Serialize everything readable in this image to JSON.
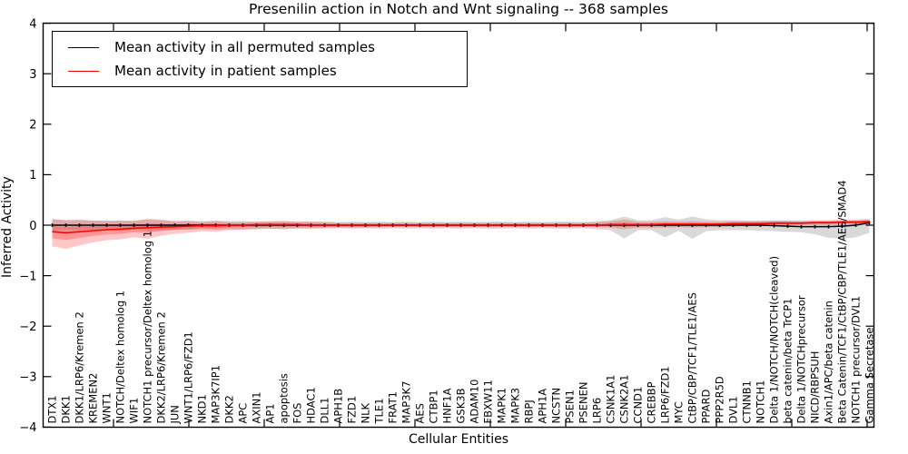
{
  "figure": {
    "title": "Presenilin action in Notch and Wnt signaling -- 368 samples"
  },
  "axes": {
    "xlabel": "Cellular Entities",
    "ylabel": "Inferred Activity",
    "ytick_values": [
      4,
      3,
      2,
      1,
      0,
      -1,
      -2,
      -3,
      -4
    ],
    "ytick_labels": [
      "4",
      "3",
      "2",
      "1",
      "0",
      "−1",
      "−2",
      "−3",
      "−4"
    ]
  },
  "legend": {
    "items": [
      {
        "label": "Mean activity in all permuted samples",
        "color": "#000000"
      },
      {
        "label": "Mean activity in patient samples",
        "color": "#ff0000"
      }
    ]
  },
  "colors": {
    "permuted_line": "#000000",
    "patient_line": "#ff0000",
    "permuted_band": "#8a8a8a",
    "patient_band": "#ff0000",
    "frame": "#000000"
  },
  "chart_data": {
    "type": "line",
    "title": "Presenilin action in Notch and Wnt signaling -- 368 samples",
    "xlabel": "Cellular Entities",
    "ylabel": "Inferred Activity",
    "ylim": [
      -4,
      4
    ],
    "yticks": [
      4,
      3,
      2,
      1,
      0,
      -1,
      -2,
      -3,
      -4
    ],
    "grid": false,
    "legend_position": "upper left",
    "categories": [
      "DTX1",
      "DKK1",
      "DKK1/LRP6/Kremen 2",
      "KREMEN2",
      "WNT1",
      "NOTCH/Deltex homolog 1",
      "WIF1",
      "NOTCH1 precursor/Deltex homolog 1",
      "DKK2/LRP6/Kremen 2",
      "JUN",
      "WNT1/LRP6/FZD1",
      "NKD1",
      "MAP3K7IP1",
      "DKK2",
      "APC",
      "AXIN1",
      "AP1",
      "apoptosis",
      "FOS",
      "HDAC1",
      "DLL1",
      "APH1B",
      "FZD1",
      "NLK",
      "TLE1",
      "FRAT1",
      "MAP3K7",
      "AES",
      "CTBP1",
      "HNF1A",
      "GSK3B",
      "ADAM10",
      "FBXW11",
      "MAPK1",
      "MAPK3",
      "RBPJ",
      "APH1A",
      "NCSTN",
      "PSEN1",
      "PSENEN",
      "LRP6",
      "CSNK1A1",
      "CSNK2A1",
      "CCND1",
      "CREBBP",
      "LRP6/FZD1",
      "MYC",
      "CtBP/CBP/TCF1/TLE1/AES",
      "PPARD",
      "PPP2R5D",
      "DVL1",
      "CTNNB1",
      "NOTCH1",
      "Delta 1/NOTCH/NOTCH(cleaved)",
      "beta catenin/beta TrCP1",
      "Delta 1/NOTCHprecursor",
      "NICD/RBPSUH",
      "Axin1/APC/beta catenin",
      "Beta Catenin/TCF1/CtBP/CBP/TLE1/AES/SMAD4",
      "NOTCH1 precursor/DVL1",
      "Gamma Secretase"
    ],
    "series": [
      {
        "name": "Mean activity in all permuted samples",
        "color": "#000000",
        "values": [
          0,
          0,
          0,
          0,
          0,
          0,
          0,
          0,
          0,
          0,
          0,
          0,
          0,
          0,
          0,
          0,
          0,
          0,
          0,
          0,
          0,
          0,
          0,
          0,
          0,
          0,
          0,
          0,
          0,
          0,
          0,
          0,
          0,
          0,
          0,
          0,
          0,
          0,
          0,
          0,
          0,
          0,
          0,
          0,
          0,
          0,
          0,
          0,
          0,
          0,
          0,
          0,
          0,
          -0.01,
          -0.02,
          -0.03,
          -0.03,
          -0.03,
          -0.02,
          0,
          0.05
        ],
        "band_upper": [
          0.12,
          0.1,
          0.1,
          0.09,
          0.09,
          0.09,
          0.09,
          0.11,
          0.1,
          0.09,
          0.09,
          0.08,
          0.09,
          0.08,
          0.08,
          0.07,
          0.07,
          0.08,
          0.07,
          0.07,
          0.07,
          0.06,
          0.07,
          0.06,
          0.07,
          0.06,
          0.07,
          0.06,
          0.07,
          0.06,
          0.07,
          0.06,
          0.07,
          0.07,
          0.06,
          0.07,
          0.06,
          0.07,
          0.07,
          0.06,
          0.08,
          0.1,
          0.17,
          0.1,
          0.1,
          0.16,
          0.11,
          0.17,
          0.12,
          0.1,
          0.1,
          0.09,
          0.09,
          0.09,
          0.09,
          0.08,
          0.08,
          0.08,
          0.09,
          0.09,
          0.1
        ],
        "band_lower": [
          -0.12,
          -0.1,
          -0.1,
          -0.09,
          -0.09,
          -0.09,
          -0.09,
          -0.11,
          -0.1,
          -0.09,
          -0.09,
          -0.08,
          -0.09,
          -0.08,
          -0.08,
          -0.07,
          -0.07,
          -0.08,
          -0.07,
          -0.07,
          -0.07,
          -0.06,
          -0.07,
          -0.06,
          -0.07,
          -0.06,
          -0.07,
          -0.06,
          -0.07,
          -0.06,
          -0.07,
          -0.06,
          -0.07,
          -0.07,
          -0.06,
          -0.07,
          -0.06,
          -0.07,
          -0.07,
          -0.06,
          -0.08,
          -0.1,
          -0.26,
          -0.1,
          -0.1,
          -0.24,
          -0.11,
          -0.27,
          -0.12,
          -0.1,
          -0.1,
          -0.1,
          -0.11,
          -0.12,
          -0.13,
          -0.14,
          -0.18,
          -0.25,
          -0.27,
          -0.24,
          -0.15
        ]
      },
      {
        "name": "Mean activity in patient samples",
        "color": "#ff0000",
        "values": [
          -0.13,
          -0.15,
          -0.13,
          -0.11,
          -0.09,
          -0.08,
          -0.06,
          -0.05,
          -0.04,
          -0.03,
          -0.02,
          -0.01,
          -0.01,
          0,
          0,
          0.01,
          0.01,
          0.01,
          0.01,
          0,
          0,
          0,
          0,
          0,
          0,
          0,
          0,
          0,
          0,
          0,
          0,
          0,
          0,
          0,
          0,
          0,
          0,
          0,
          0,
          0,
          0,
          0.01,
          0.01,
          0.01,
          0.01,
          0.02,
          0.02,
          0.02,
          0.02,
          0.02,
          0.03,
          0.03,
          0.03,
          0.04,
          0.04,
          0.04,
          0.05,
          0.05,
          0.06,
          0.06,
          0.07
        ],
        "band_upper": [
          0.12,
          0.1,
          0.11,
          0.09,
          0.08,
          0.09,
          0.08,
          0.13,
          0.11,
          0.07,
          0.08,
          0.06,
          0.08,
          0.06,
          0.06,
          0.07,
          0.08,
          0.08,
          0.07,
          0.07,
          0.06,
          0.05,
          0.05,
          0.05,
          0.05,
          0.05,
          0.05,
          0.05,
          0.05,
          0.05,
          0.05,
          0.05,
          0.05,
          0.05,
          0.05,
          0.05,
          0.05,
          0.05,
          0.05,
          0.05,
          0.06,
          0.08,
          0.11,
          0.07,
          0.07,
          0.08,
          0.07,
          0.08,
          0.07,
          0.07,
          0.08,
          0.08,
          0.08,
          0.09,
          0.09,
          0.09,
          0.1,
          0.1,
          0.11,
          0.11,
          0.13
        ],
        "band_lower": [
          -0.42,
          -0.47,
          -0.4,
          -0.34,
          -0.3,
          -0.28,
          -0.24,
          -0.27,
          -0.21,
          -0.17,
          -0.15,
          -0.12,
          -0.13,
          -0.1,
          -0.09,
          -0.08,
          -0.07,
          -0.07,
          -0.06,
          -0.06,
          -0.05,
          -0.05,
          -0.05,
          -0.05,
          -0.04,
          -0.04,
          -0.04,
          -0.04,
          -0.04,
          -0.04,
          -0.04,
          -0.04,
          -0.04,
          -0.04,
          -0.04,
          -0.04,
          -0.04,
          -0.04,
          -0.04,
          -0.04,
          -0.04,
          -0.05,
          -0.08,
          -0.05,
          -0.05,
          -0.05,
          -0.04,
          -0.05,
          -0.04,
          -0.04,
          -0.03,
          -0.02,
          -0.02,
          -0.01,
          -0.01,
          0,
          0,
          0,
          0.01,
          0.01,
          0.01
        ]
      }
    ]
  }
}
